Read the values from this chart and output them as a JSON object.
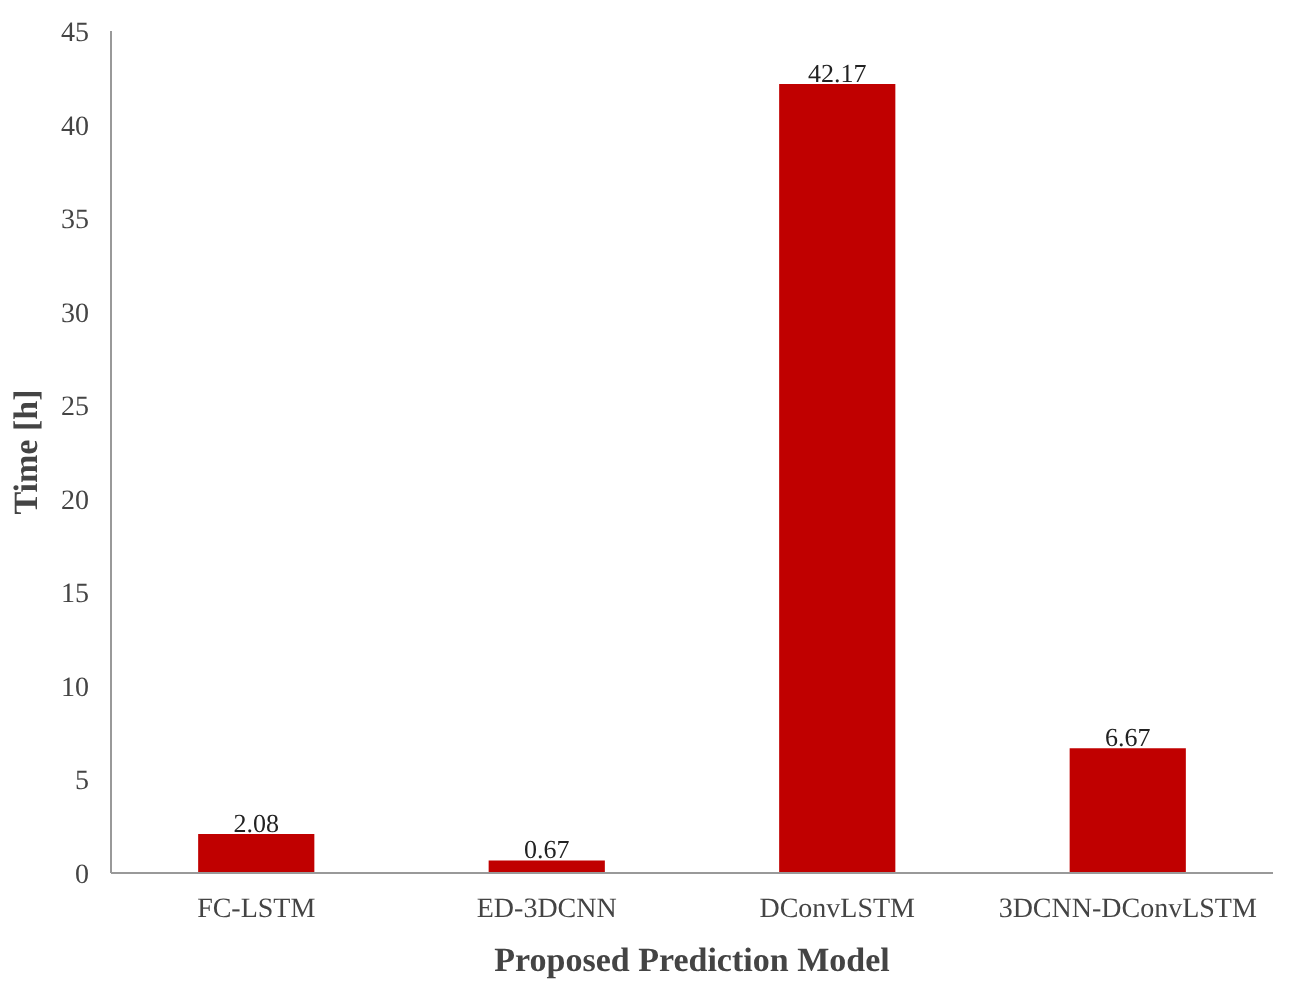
{
  "chart_data": {
    "type": "bar",
    "xlabel": "Proposed Prediction Model",
    "ylabel": "Time [h]",
    "categories": [
      "FC-LSTM",
      "ED-3DCNN",
      "DConvLSTM",
      "3DCNN-DConvLSTM"
    ],
    "values": [
      2.08,
      0.67,
      42.17,
      6.67
    ],
    "color": "#c00000",
    "ylim": [
      0,
      45
    ],
    "yticks": [
      0,
      5,
      10,
      15,
      20,
      25,
      30,
      35,
      40,
      45
    ],
    "grid": false,
    "data_labels": true
  }
}
